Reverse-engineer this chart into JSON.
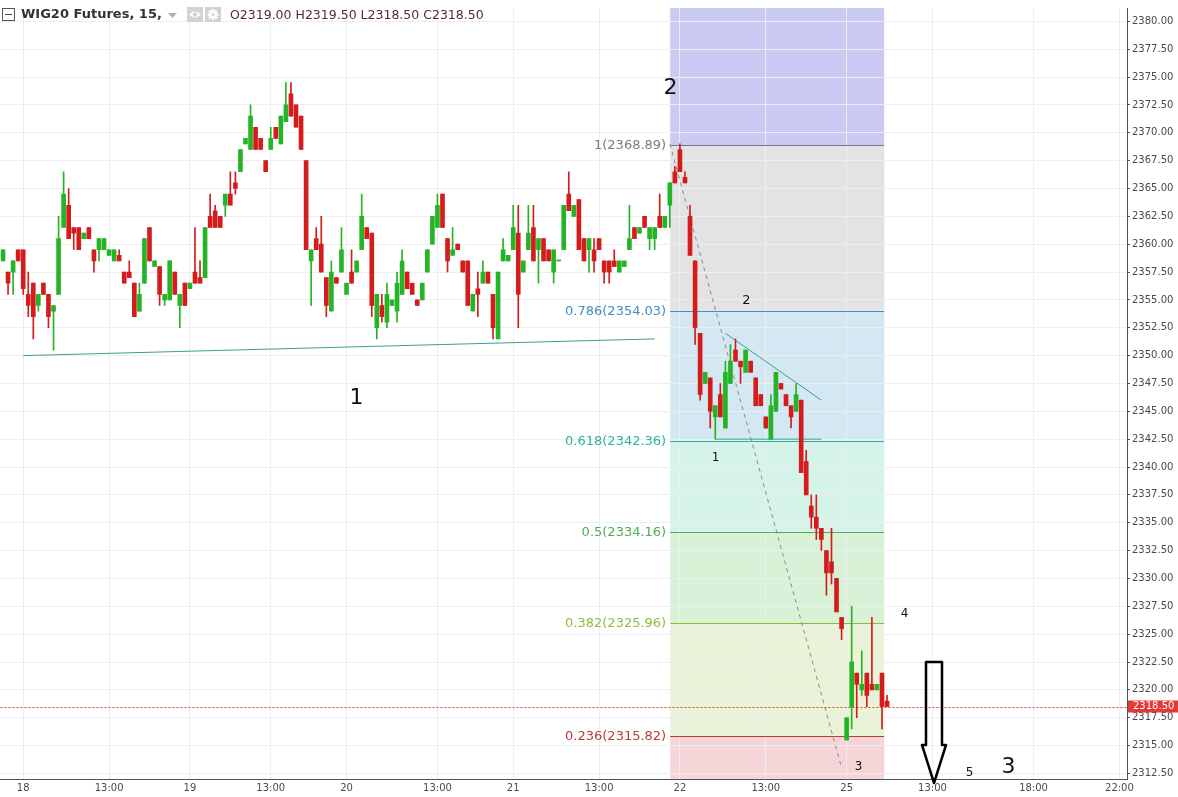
{
  "chart_data": {
    "type": "candlestick",
    "title": "WIG20 Futures, 15,",
    "subtitle": "O2319.00 H2319.50 L2318.50 C2318.50",
    "categories": [
      null,
      null,
      null,
      null,
      "18",
      null,
      null,
      null,
      null,
      null,
      null,
      null,
      null,
      null,
      null,
      null,
      null,
      null,
      null,
      null,
      null,
      "13:00",
      null,
      null,
      null,
      null,
      null,
      null,
      null,
      null,
      null,
      null,
      null,
      null,
      null,
      null,
      null,
      "19",
      null,
      null,
      null,
      null,
      null,
      null,
      null,
      null,
      null,
      null,
      null,
      null,
      null,
      null,
      null,
      "13:00",
      null,
      null,
      null,
      null,
      null,
      null,
      null,
      null,
      null,
      null,
      null,
      null,
      null,
      null,
      "20",
      null,
      null,
      null,
      null,
      null,
      null,
      null,
      null,
      null,
      null,
      null,
      null,
      null,
      null,
      null,
      null,
      null,
      "13:00",
      null,
      null,
      null,
      null,
      null,
      null,
      null,
      null,
      null,
      null,
      null,
      null,
      null,
      null,
      "21",
      null,
      null,
      null,
      null,
      null,
      null,
      null,
      null,
      null,
      null,
      null,
      null,
      null,
      null,
      null,
      null,
      "13:00",
      null,
      null,
      null,
      null,
      null,
      null,
      null,
      null,
      null,
      null,
      null,
      null,
      null,
      null,
      null,
      "22",
      null,
      null,
      null,
      null,
      null,
      null,
      null,
      null,
      null,
      null,
      null,
      null,
      null,
      null,
      null,
      null,
      "13:00",
      null,
      null,
      null,
      null,
      null,
      null,
      null,
      null,
      null,
      null,
      null,
      null,
      null,
      null,
      null,
      "25",
      null,
      null,
      null,
      null,
      null,
      null,
      null,
      null,
      null,
      null,
      null,
      null,
      null,
      null,
      null,
      null,
      "13:00",
      null,
      null,
      null,
      null,
      null,
      null,
      null,
      null,
      null,
      null,
      null,
      null,
      null,
      null,
      null,
      null,
      null,
      null,
      null,
      "18:00",
      null,
      null,
      null,
      null,
      null,
      null,
      null,
      null,
      null,
      null,
      null,
      null,
      null,
      null,
      null,
      null,
      "22:00",
      null
    ],
    "ohlc": [
      [
        2358.5,
        2359.5,
        2358.5,
        2359.5
      ],
      [
        2357.5,
        2357.5,
        2355.5,
        2356.5
      ],
      [
        2357.5,
        2358.5,
        2355.5,
        2358.5
      ],
      [
        2359.5,
        2359.5,
        2358.5,
        2358.5
      ],
      [
        2359.5,
        2359.5,
        2355.5,
        2356
      ],
      [
        2355.5,
        2357.5,
        2353.5,
        2354.5
      ],
      [
        2356.5,
        2356.5,
        2351.5,
        2353.5
      ],
      [
        2354.5,
        2355.5,
        2354,
        2355.5
      ],
      [
        2356.5,
        2356.5,
        2355.5,
        2355.5
      ],
      [
        2355.5,
        2355.5,
        2352.5,
        2353.5
      ],
      [
        2354,
        2354.5,
        2350.5,
        2354.5
      ],
      [
        2355.5,
        2362.5,
        2355.5,
        2360.5
      ],
      [
        2361.5,
        2366.5,
        2361.5,
        2364.5
      ],
      [
        2363.5,
        2365,
        2360.5,
        2360.5
      ],
      [
        2361.5,
        2361.5,
        2359.5,
        2361
      ],
      [
        2361.5,
        2361.5,
        2359.5,
        2359.5
      ],
      [
        2360.5,
        2361,
        2360.5,
        2361
      ],
      [
        2361.5,
        2361.5,
        2360.5,
        2360.5
      ],
      [
        2359.5,
        2359.5,
        2357.5,
        2358.5
      ],
      [
        2359.5,
        2360.5,
        2358.5,
        2360.5
      ],
      [
        2359.5,
        2360.5,
        2359.5,
        2360.5
      ],
      [
        2359,
        2359.5,
        2359,
        2359.5
      ],
      [
        2358.5,
        2359.5,
        2358.5,
        2359.5
      ],
      [
        2359,
        2359.5,
        2358.5,
        2358.5
      ],
      [
        2357.5,
        2357.5,
        2356.5,
        2356.5
      ],
      [
        2357.5,
        2358.5,
        2357,
        2357
      ],
      [
        2356.5,
        2356.5,
        2353.5,
        2353.5
      ],
      [
        2354,
        2356.5,
        2354,
        2355.5
      ],
      [
        2356.5,
        2360.5,
        2356.5,
        2360.5
      ],
      [
        2361.5,
        2361.5,
        2358.5,
        2358.5
      ],
      [
        2358,
        2358.5,
        2358,
        2358.5
      ],
      [
        2358,
        2358,
        2354.5,
        2355.5
      ],
      [
        2355,
        2355.5,
        2354.5,
        2355.5
      ],
      [
        2355,
        2358.5,
        2355,
        2358.5
      ],
      [
        2357.5,
        2357.5,
        2355.5,
        2355.5
      ],
      [
        2354.5,
        2355.5,
        2352.5,
        2355.5
      ],
      [
        2356.5,
        2356.5,
        2354.5,
        2354.5
      ],
      [
        2356,
        2356.5,
        2356,
        2356.5
      ],
      [
        2357.5,
        2361.5,
        2356.5,
        2356.5
      ],
      [
        2357,
        2358.5,
        2356.5,
        2356.5
      ],
      [
        2357,
        2361.5,
        2357,
        2361.5
      ],
      [
        2362.5,
        2364.5,
        2361.5,
        2361.5
      ],
      [
        2363,
        2363.5,
        2361.5,
        2361.5
      ],
      [
        2362.5,
        2362.5,
        2361.5,
        2361.5
      ],
      [
        2363.5,
        2364.5,
        2362.5,
        2364.5
      ],
      [
        2364.5,
        2366.5,
        2363.5,
        2363.5
      ],
      [
        2365.5,
        2366.5,
        2364.5,
        2365
      ],
      [
        2366.5,
        2368.5,
        2366.5,
        2368.5
      ],
      [
        2369,
        2369.5,
        2369,
        2369.5
      ],
      [
        2368.5,
        2372.5,
        2368.5,
        2371.5
      ],
      [
        2370.5,
        2370.5,
        2368.5,
        2368.5
      ],
      [
        2369.5,
        2369.5,
        2368.5,
        2368.5
      ],
      [
        2367.5,
        2367.5,
        2366.5,
        2366.5
      ],
      [
        2368.5,
        2370.5,
        2368.5,
        2369.5
      ],
      [
        2370.5,
        2370.5,
        2369.5,
        2369.5
      ],
      [
        2369,
        2371.5,
        2369,
        2371.5
      ],
      [
        2371,
        2374.5,
        2371,
        2372.5
      ],
      [
        2373.5,
        2374.5,
        2371.5,
        2371.5
      ],
      [
        2372.5,
        2372.5,
        2370.5,
        2370.5
      ],
      [
        2371.5,
        2371.5,
        2368.5,
        2368.5
      ],
      [
        2367.5,
        2367.5,
        2359.5,
        2359.5
      ],
      [
        2358.5,
        2359.5,
        2354.5,
        2359.5
      ],
      [
        2360.5,
        2361.5,
        2359.5,
        2359.5
      ],
      [
        2360,
        2362.5,
        2357.5,
        2357.5
      ],
      [
        2357,
        2357,
        2353.5,
        2354.5
      ],
      [
        2354,
        2358.5,
        2354,
        2357.5
      ],
      [
        2357,
        2357,
        2356.5,
        2356.5
      ],
      [
        2357.5,
        2361.5,
        2357.5,
        2359.5
      ],
      [
        2355.5,
        2356.5,
        2355.5,
        2356.5
      ],
      [
        2357.5,
        2359.5,
        2356.5,
        2356.5
      ],
      [
        2357.5,
        2358.5,
        2357.5,
        2358.5
      ],
      [
        2359.5,
        2364.5,
        2359.5,
        2362.5
      ],
      [
        2361.5,
        2361.5,
        2360.5,
        2360.5
      ],
      [
        2361,
        2361,
        2353.5,
        2354.5
      ],
      [
        2352.5,
        2355.5,
        2351.5,
        2355.5
      ],
      [
        2354.5,
        2355.5,
        2353,
        2353.5
      ],
      [
        2353,
        2356.5,
        2352.5,
        2355.5
      ],
      [
        2354.5,
        2355,
        2354.5,
        2355
      ],
      [
        2354,
        2357.5,
        2353,
        2356.5
      ],
      [
        2355.5,
        2359.5,
        2355.5,
        2358.5
      ],
      [
        2357.5,
        2357.5,
        2356,
        2356
      ],
      [
        2356.5,
        2356.5,
        2355.5,
        2355.5
      ],
      [
        2355,
        2355,
        2354.5,
        2354.5
      ],
      [
        2355,
        2356.5,
        2355,
        2356.5
      ],
      [
        2357.5,
        2359.5,
        2357.5,
        2359.5
      ],
      [
        2360,
        2362.5,
        2360,
        2362.5
      ],
      [
        2361.5,
        2364.5,
        2361.5,
        2363.5
      ],
      [
        2364.5,
        2364.5,
        2361.5,
        2361.5
      ],
      [
        2360.5,
        2360.5,
        2357.5,
        2358.5
      ],
      [
        2359,
        2361.5,
        2359,
        2359.5
      ],
      [
        2360,
        2360,
        2359.5,
        2359.5
      ],
      [
        2358.5,
        2358.5,
        2357.5,
        2357.5
      ],
      [
        2358.5,
        2358.5,
        2354.5,
        2354.5
      ],
      [
        2354,
        2355.5,
        2354,
        2355.5
      ],
      [
        2356,
        2357.5,
        2353.5,
        2355.5
      ],
      [
        2356.5,
        2358.5,
        2356.5,
        2357.5
      ],
      [
        2357.5,
        2357.5,
        2356.5,
        2356.5
      ],
      [
        2355.5,
        2355.5,
        2351.5,
        2352.5
      ],
      [
        2351.5,
        2357.5,
        2351.5,
        2357.5
      ],
      [
        2358.5,
        2360.5,
        2358.5,
        2359.5
      ],
      [
        2358.5,
        2359,
        2358.5,
        2359
      ],
      [
        2359.5,
        2363.5,
        2359.5,
        2361.5
      ],
      [
        2361,
        2363.5,
        2352.5,
        2355.5
      ],
      [
        2357.5,
        2358.5,
        2357.5,
        2358.5
      ],
      [
        2359.5,
        2363.5,
        2359.5,
        2361
      ],
      [
        2361.5,
        2363.5,
        2358.5,
        2358.5
      ],
      [
        2359.5,
        2360.5,
        2356.5,
        2360.5
      ],
      [
        2360.5,
        2360.5,
        2358.5,
        2358.5
      ],
      [
        2359.5,
        2359.5,
        2358.5,
        2358.5
      ],
      [
        2357.5,
        2359.5,
        2356.5,
        2359.5
      ],
      [
        2358.5,
        2358.5,
        2358.5,
        2358.5
      ],
      [
        2359.5,
        2363.5,
        2359.5,
        2363.5
      ],
      [
        2364.5,
        2366.5,
        2363,
        2363
      ],
      [
        2362.5,
        2363.5,
        2362.5,
        2363.5
      ],
      [
        2364,
        2364,
        2359.5,
        2359.5
      ],
      [
        2360.5,
        2360.5,
        2358.5,
        2358.5
      ],
      [
        2359.5,
        2360.5,
        2357.5,
        2360.5
      ],
      [
        2359.5,
        2360.5,
        2357.5,
        2358.5
      ],
      [
        2360.5,
        2360.5,
        2359.5,
        2359.5
      ],
      [
        2358.5,
        2358.5,
        2356.5,
        2357.5
      ],
      [
        2358.5,
        2358.5,
        2356.5,
        2357.5
      ],
      [
        2358.5,
        2359.5,
        2358,
        2358
      ],
      [
        2357.5,
        2358.5,
        2357.5,
        2358.5
      ],
      [
        2358,
        2358.5,
        2358,
        2358.5
      ],
      [
        2359.5,
        2363.5,
        2359.5,
        2360.5
      ],
      [
        2361.5,
        2361.5,
        2360.5,
        2360.5
      ],
      [
        2361,
        2361.5,
        2361,
        2361.5
      ],
      [
        2362.5,
        2362.5,
        2361.5,
        2361.5
      ],
      [
        2360.5,
        2361.5,
        2359.5,
        2361.5
      ],
      [
        2360.5,
        2361.5,
        2359.5,
        2361.5
      ],
      [
        2362.5,
        2364.5,
        2361.5,
        2361.5
      ],
      [
        2361.5,
        2362.5,
        2361.5,
        2362.5
      ],
      [
        2363.5,
        2365.5,
        2361.5,
        2365.5
      ],
      [
        2366.5,
        2367,
        2365.5,
        2365.5
      ],
      [
        2368.5,
        2369,
        2366.5,
        2366.5
      ],
      [
        2366,
        2366.5,
        2365.5,
        2365.5
      ],
      [
        2362.5,
        2363.5,
        2359,
        2359
      ],
      [
        2358.5,
        2358.5,
        2351,
        2352.5
      ],
      [
        2352,
        2352,
        2346,
        2346.5
      ],
      [
        2347.5,
        2348.5,
        2347.5,
        2348.5
      ],
      [
        2348,
        2348,
        2343.5,
        2345
      ],
      [
        2344.5,
        2345.5,
        2342.5,
        2345.5
      ],
      [
        2346.5,
        2347.5,
        2344.5,
        2344.5
      ],
      [
        2343.5,
        2349.5,
        2343.5,
        2348.5
      ],
      [
        2347.5,
        2351,
        2347.5,
        2349.5
      ],
      [
        2350.5,
        2351.5,
        2349.5,
        2349.5
      ],
      [
        2349.5,
        2349.5,
        2347.5,
        2349
      ],
      [
        2348.5,
        2350.5,
        2348.5,
        2350.5
      ],
      [
        2349.5,
        2349.5,
        2348.5,
        2348.5
      ],
      [
        2348,
        2348,
        2345.5,
        2345.5
      ],
      [
        2346.5,
        2346.5,
        2345.5,
        2345.5
      ],
      [
        2344.5,
        2344.5,
        2343.5,
        2343.5
      ],
      [
        2342.5,
        2346.5,
        2342.5,
        2345.5
      ],
      [
        2345,
        2348.5,
        2345,
        2348.5
      ],
      [
        2347.5,
        2347.5,
        2347,
        2347
      ],
      [
        2346.5,
        2346.5,
        2345.5,
        2345.5
      ],
      [
        2345.5,
        2345.5,
        2343.5,
        2344.5
      ],
      [
        2345,
        2347.5,
        2345,
        2346.5
      ],
      [
        2346,
        2346,
        2339.5,
        2339.5
      ],
      [
        2340.5,
        2341.5,
        2337.5,
        2337.5
      ],
      [
        2336.5,
        2337.5,
        2334.5,
        2335.5
      ],
      [
        2335.5,
        2337.5,
        2333.5,
        2334.5
      ],
      [
        2334.5,
        2334.5,
        2332.5,
        2333.5
      ],
      [
        2332.5,
        2332.5,
        2328.5,
        2330.5
      ],
      [
        2331.5,
        2334.5,
        2329.5,
        2330.5
      ],
      [
        2330,
        2330,
        2327,
        2327
      ],
      [
        2326.5,
        2326.5,
        2324.5,
        2325.5
      ],
      [
        2315.5,
        2317.5,
        2315.5,
        2317.5
      ],
      [
        2318.5,
        2327.5,
        2316.5,
        2322.5
      ],
      [
        2321.5,
        2321.5,
        2317.5,
        2320.5
      ],
      [
        2320,
        2323.5,
        2319.5,
        2320.5
      ],
      [
        2321.5,
        2321.5,
        2318.5,
        2319.5
      ],
      [
        2320.5,
        2326.5,
        2320,
        2320
      ],
      [
        2320,
        2320.5,
        2320,
        2320.5
      ],
      [
        2321.5,
        2321.5,
        2316.5,
        2318.5
      ],
      [
        2319,
        2319.5,
        2318.5,
        2318.5
      ],
      null,
      null,
      null,
      null,
      null,
      null,
      null,
      null,
      null,
      null,
      null,
      null,
      null,
      null,
      null,
      null,
      null,
      null,
      null,
      null,
      null,
      null,
      null,
      null,
      null,
      null,
      null,
      null,
      null,
      null,
      null,
      null,
      null,
      null,
      null,
      null,
      null,
      null,
      null,
      null,
      null,
      null,
      null,
      null,
      null,
      null,
      null
    ],
    "colors": [
      "#25b425",
      "#d51c1c",
      "#25b425",
      "#d51c1c",
      "#d51c1c",
      "#d51c1c",
      "#d51c1c",
      "#25b425",
      "#d51c1c",
      "#d51c1c",
      "#25b425",
      "#25b425",
      "#25b425",
      "#d51c1c",
      "#d51c1c",
      "#d51c1c",
      "#25b425",
      "#d51c1c",
      "#d51c1c",
      "#25b425",
      "#25b425",
      "#25b425",
      "#25b425",
      "#d51c1c",
      "#d51c1c",
      "#d51c1c",
      "#d51c1c",
      "#25b425",
      "#25b425",
      "#d51c1c",
      "#25b425",
      "#d51c1c",
      "#25b425",
      "#25b425",
      "#d51c1c",
      "#25b425",
      "#d51c1c",
      "#25b425",
      "#d51c1c",
      "#d51c1c",
      "#25b425",
      "#d51c1c",
      "#d51c1c",
      "#d51c1c",
      "#25b425",
      "#d51c1c",
      "#d51c1c",
      "#25b425",
      "#25b425",
      "#25b425",
      "#d51c1c",
      "#d51c1c",
      "#d51c1c",
      "#25b425",
      "#d51c1c",
      "#25b425",
      "#25b425",
      "#d51c1c",
      "#d51c1c",
      "#d51c1c",
      "#d51c1c",
      "#25b425",
      "#d51c1c",
      "#d51c1c",
      "#d51c1c",
      "#25b425",
      "#d51c1c",
      "#25b425",
      "#25b425",
      "#d51c1c",
      "#25b425",
      "#25b425",
      "#d51c1c",
      "#d51c1c",
      "#25b425",
      "#d51c1c",
      "#25b425",
      "#25b425",
      "#25b425",
      "#25b425",
      "#d51c1c",
      "#d51c1c",
      "#d51c1c",
      "#25b425",
      "#25b425",
      "#25b425",
      "#25b425",
      "#d51c1c",
      "#d51c1c",
      "#25b425",
      "#d51c1c",
      "#d51c1c",
      "#d51c1c",
      "#25b425",
      "#d51c1c",
      "#25b425",
      "#d51c1c",
      "#d51c1c",
      "#25b425",
      "#25b425",
      "#25b425",
      "#25b425",
      "#d51c1c",
      "#25b425",
      "#25b425",
      "#d51c1c",
      "#25b425",
      "#d51c1c",
      "#d51c1c",
      "#25b425",
      "#25b425",
      "#25b425",
      "#d51c1c",
      "#25b425",
      "#d51c1c",
      "#d51c1c",
      "#25b425",
      "#d51c1c",
      "#d51c1c",
      "#d51c1c",
      "#d51c1c",
      "#d51c1c",
      "#25b425",
      "#25b425",
      "#25b425",
      "#d51c1c",
      "#25b425",
      "#d51c1c",
      "#25b425",
      "#25b425",
      "#d51c1c",
      "#25b425",
      "#25b425",
      "#d51c1c",
      "#d51c1c",
      "#d51c1c",
      "#d51c1c",
      "#d51c1c",
      "#d51c1c",
      "#25b425",
      "#d51c1c",
      "#25b425",
      "#d51c1c",
      "#25b425",
      "#25b425",
      "#d51c1c",
      "#d51c1c",
      "#25b425",
      "#d51c1c",
      "#d51c1c",
      "#d51c1c",
      "#d51c1c",
      "#25b425",
      "#25b425",
      "#d51c1c",
      "#d51c1c",
      "#d51c1c",
      "#25b425",
      "#d51c1c",
      "#d51c1c",
      "#d51c1c",
      "#d51c1c",
      "#d51c1c",
      "#d51c1c",
      "#d51c1c",
      "#d51c1c",
      "#d51c1c",
      "#25b425",
      "#25b425",
      "#d51c1c",
      "#25b425",
      "#d51c1c",
      "#d51c1c",
      "#25b425",
      "#d51c1c",
      "#d51c1c",
      null,
      null,
      null,
      null,
      null,
      null,
      null,
      null,
      null,
      null,
      null,
      null,
      null,
      null,
      null,
      null,
      null,
      null,
      null,
      null,
      null,
      null,
      null,
      null,
      null,
      null,
      null,
      null,
      null,
      null,
      null,
      null,
      null,
      null,
      null,
      null,
      null,
      null,
      null,
      null,
      null,
      null,
      null,
      null,
      null,
      null,
      null
    ],
    "series": [
      {
        "type": "line",
        "color": "#3a9f96",
        "values": [
          null,
          null,
          null,
          null,
          2350,
          null,
          null,
          null,
          null,
          null,
          null,
          null,
          null,
          null,
          null,
          null,
          null,
          null,
          null,
          null,
          null,
          null,
          null,
          null,
          null,
          null,
          null,
          null,
          null,
          null,
          null,
          null,
          null,
          null,
          null,
          null,
          null,
          null,
          null,
          null,
          null,
          null,
          null,
          null,
          null,
          null,
          null,
          null,
          null,
          null,
          null,
          null,
          null,
          null,
          null,
          null,
          null,
          null,
          null,
          null,
          null,
          null,
          null,
          null,
          null,
          null,
          null,
          null,
          null,
          null,
          null,
          null,
          null,
          null,
          null,
          null,
          null,
          null,
          null,
          null,
          null,
          null,
          null,
          null,
          null,
          null,
          null,
          null,
          null,
          null,
          null,
          null,
          null,
          null,
          null,
          null,
          null,
          null,
          null,
          null,
          null,
          null,
          null,
          null,
          null,
          null,
          null,
          null,
          null,
          null,
          null,
          null,
          null,
          null,
          null,
          null,
          null,
          null,
          null,
          null,
          null,
          null,
          null,
          null,
          null,
          null,
          null,
          null,
          null,
          2351.5,
          null,
          null,
          null,
          null,
          null,
          null,
          null,
          null,
          null,
          null,
          null,
          null,
          null,
          null,
          null,
          null,
          null,
          null,
          null,
          null,
          null,
          null,
          null,
          null,
          null,
          null,
          null,
          null,
          null,
          null,
          null,
          null,
          null,
          null,
          null,
          null,
          null,
          null,
          null,
          null,
          null,
          null,
          null,
          null,
          null,
          null,
          null,
          null,
          null,
          null,
          null,
          null,
          null,
          null,
          null,
          null,
          null,
          null,
          null,
          null,
          null,
          null,
          null,
          null,
          null,
          null,
          null,
          null,
          null,
          null,
          null,
          null,
          null,
          null,
          null,
          null,
          null,
          null,
          null,
          null,
          null,
          null,
          null,
          null,
          null,
          null,
          null,
          null,
          null,
          null,
          null,
          null,
          null
        ]
      },
      {
        "type": "line",
        "color": "#3a9f96",
        "values": [
          null,
          null,
          null,
          null,
          null,
          null,
          null,
          null,
          null,
          null,
          null,
          null,
          null,
          null,
          null,
          null,
          null,
          null,
          null,
          null,
          null,
          null,
          null,
          null,
          null,
          null,
          null,
          null,
          null,
          null,
          null,
          null,
          null,
          null,
          null,
          null,
          null,
          null,
          null,
          null,
          null,
          null,
          null,
          null,
          null,
          null,
          null,
          null,
          null,
          null,
          null,
          null,
          null,
          null,
          null,
          null,
          null,
          null,
          null,
          null,
          null,
          null,
          null,
          null,
          null,
          null,
          null,
          null,
          null,
          null,
          null,
          null,
          null,
          null,
          null,
          null,
          null,
          null,
          null,
          null,
          null,
          null,
          null,
          null,
          null,
          null,
          null,
          null,
          null,
          null,
          null,
          null,
          null,
          null,
          null,
          null,
          null,
          null,
          null,
          null,
          null,
          null,
          null,
          null,
          null,
          null,
          null,
          null,
          null,
          null,
          null,
          null,
          null,
          null,
          null,
          null,
          null,
          null,
          null,
          null,
          null,
          null,
          null,
          null,
          null,
          null,
          null,
          null,
          null,
          null,
          null,
          null,
          null,
          null,
          null,
          null,
          null,
          null,
          null,
          null,
          null,
          null,
          null,
          2352,
          null,
          null,
          null,
          null,
          null,
          null,
          null,
          null,
          null,
          null,
          null,
          null,
          null,
          null,
          null,
          null,
          null,
          null,
          2346,
          null,
          null,
          null,
          null,
          null,
          null,
          null,
          null,
          null,
          null,
          null,
          null,
          null,
          null,
          null,
          null,
          null,
          null,
          null,
          null,
          null,
          null,
          null,
          null,
          null,
          null,
          null,
          null,
          null,
          null,
          null,
          null,
          null,
          null,
          null,
          null,
          null,
          null,
          null,
          null,
          null,
          null,
          null,
          null,
          null,
          null,
          null,
          null,
          null,
          null,
          null,
          null,
          null,
          null,
          null,
          null,
          null,
          null,
          null,
          null
        ]
      },
      {
        "type": "line",
        "color": "#3a9f96",
        "values": [
          null,
          null,
          null,
          null,
          null,
          null,
          null,
          null,
          null,
          null,
          null,
          null,
          null,
          null,
          null,
          null,
          null,
          null,
          null,
          null,
          null,
          null,
          null,
          null,
          null,
          null,
          null,
          null,
          null,
          null,
          null,
          null,
          null,
          null,
          null,
          null,
          null,
          null,
          null,
          null,
          null,
          null,
          null,
          null,
          null,
          null,
          null,
          null,
          null,
          null,
          null,
          null,
          null,
          null,
          null,
          null,
          null,
          null,
          null,
          null,
          null,
          null,
          null,
          null,
          null,
          null,
          null,
          null,
          null,
          null,
          null,
          null,
          null,
          null,
          null,
          null,
          null,
          null,
          null,
          null,
          null,
          null,
          null,
          null,
          null,
          null,
          null,
          null,
          null,
          null,
          null,
          null,
          null,
          null,
          null,
          null,
          null,
          null,
          null,
          null,
          null,
          null,
          null,
          null,
          null,
          null,
          null,
          null,
          null,
          null,
          null,
          null,
          null,
          null,
          null,
          null,
          null,
          null,
          null,
          null,
          null,
          null,
          null,
          null,
          null,
          null,
          null,
          null,
          null,
          null,
          null,
          null,
          null,
          null,
          null,
          null,
          null,
          null,
          null,
          null,
          null,
          2342.5,
          null,
          null,
          null,
          null,
          null,
          null,
          null,
          null,
          null,
          null,
          null,
          null,
          null,
          null,
          null,
          null,
          null,
          null,
          null,
          null,
          2342.5,
          null,
          null,
          null,
          null,
          null,
          null,
          null,
          null,
          null,
          null,
          null,
          null,
          null,
          null,
          null,
          null,
          null,
          null,
          null,
          null,
          null,
          null,
          null,
          null,
          null,
          null,
          null,
          null,
          null,
          null,
          null,
          null,
          null,
          null,
          null,
          null,
          null,
          null,
          null,
          null,
          null,
          null,
          null,
          null,
          null,
          null,
          null,
          null,
          null,
          null,
          null,
          null,
          null,
          null,
          null,
          null,
          null,
          null,
          null,
          null
        ]
      },
      {
        "type": "line",
        "color": "#8a8a8a",
        "line_style": "dashed",
        "values": [
          null,
          null,
          null,
          null,
          null,
          null,
          null,
          null,
          null,
          null,
          null,
          null,
          null,
          null,
          null,
          null,
          null,
          null,
          null,
          null,
          null,
          null,
          null,
          null,
          null,
          null,
          null,
          null,
          null,
          null,
          null,
          null,
          null,
          null,
          null,
          null,
          null,
          null,
          null,
          null,
          null,
          null,
          null,
          null,
          null,
          null,
          null,
          null,
          null,
          null,
          null,
          null,
          null,
          null,
          null,
          null,
          null,
          null,
          null,
          null,
          null,
          null,
          null,
          null,
          null,
          null,
          null,
          null,
          null,
          null,
          null,
          null,
          null,
          null,
          null,
          null,
          null,
          null,
          null,
          null,
          null,
          null,
          null,
          null,
          null,
          null,
          null,
          null,
          null,
          null,
          null,
          null,
          null,
          null,
          null,
          null,
          null,
          null,
          null,
          null,
          null,
          null,
          null,
          null,
          null,
          null,
          null,
          null,
          null,
          null,
          null,
          null,
          null,
          null,
          null,
          null,
          null,
          null,
          null,
          null,
          null,
          null,
          null,
          null,
          null,
          null,
          null,
          null,
          null,
          null,
          null,
          null,
          2369,
          null,
          null,
          null,
          null,
          null,
          null,
          null,
          null,
          null,
          null,
          null,
          null,
          null,
          null,
          null,
          null,
          null,
          null,
          null,
          null,
          null,
          null,
          null,
          null,
          null,
          null,
          null,
          null,
          null,
          null,
          null,
          null,
          null,
          2313,
          null,
          null,
          null,
          null,
          null,
          null,
          null,
          null,
          null,
          null,
          null,
          null,
          null,
          null,
          null,
          null,
          null,
          null,
          null,
          null,
          null,
          null,
          null,
          null,
          null,
          null,
          null,
          null,
          null,
          null,
          null,
          null,
          null,
          null,
          null,
          null,
          null,
          null,
          null,
          null,
          null,
          null,
          null,
          null,
          null,
          null,
          null,
          null,
          null,
          null,
          null,
          null,
          null,
          null,
          null,
          null
        ]
      }
    ],
    "ylim": [
      2312,
      2381.2
    ],
    "yticks": [
      {
        "value": 2312.5,
        "label": "2312.50"
      },
      {
        "value": 2315,
        "label": "2315.00"
      },
      {
        "value": 2317.5,
        "label": "2317.50"
      },
      {
        "value": 2320,
        "label": "2320.00"
      },
      {
        "value": 2322.5,
        "label": "2322.50"
      },
      {
        "value": 2325,
        "label": "2325.00"
      },
      {
        "value": 2327.5,
        "label": "2327.50"
      },
      {
        "value": 2330,
        "label": "2330.00"
      },
      {
        "value": 2332.5,
        "label": "2332.50"
      },
      {
        "value": 2335,
        "label": "2335.00"
      },
      {
        "value": 2337.5,
        "label": "2337.50"
      },
      {
        "value": 2340,
        "label": "2340.00"
      },
      {
        "value": 2342.5,
        "label": "2342.50"
      },
      {
        "value": 2345,
        "label": "2345.00"
      },
      {
        "value": 2347.5,
        "label": "2347.50"
      },
      {
        "value": 2350,
        "label": "2350.00"
      },
      {
        "value": 2352.5,
        "label": "2352.50"
      },
      {
        "value": 2355,
        "label": "2355.00"
      },
      {
        "value": 2357.5,
        "label": "2357.50"
      },
      {
        "value": 2360,
        "label": "2360.00"
      },
      {
        "value": 2362.5,
        "label": "2362.50"
      },
      {
        "value": 2365,
        "label": "2365.00"
      },
      {
        "value": 2367.5,
        "label": "2367.50"
      },
      {
        "value": 2370,
        "label": "2370.00"
      },
      {
        "value": 2372.5,
        "label": "2372.50"
      },
      {
        "value": 2375,
        "label": "2375.00"
      },
      {
        "value": 2377.5,
        "label": "2377.50"
      },
      {
        "value": 2380,
        "label": "2380.00"
      }
    ],
    "bands": [
      {
        "axis": "y",
        "from": 2368.89,
        "to": 2381.2,
        "color": "#cacaf2"
      },
      {
        "axis": "y",
        "from": 2354.03,
        "to": 2368.89,
        "color": "#e3e3e3"
      },
      {
        "axis": "y",
        "from": 2342.36,
        "to": 2354.03,
        "color": "#d3e8f3"
      },
      {
        "axis": "y",
        "from": 2334.16,
        "to": 2342.36,
        "color": "#d6f3ea"
      },
      {
        "axis": "y",
        "from": 2325.96,
        "to": 2334.16,
        "color": "#d9f1d7"
      },
      {
        "axis": "y",
        "from": 2315.82,
        "to": 2325.96,
        "color": "#eaf3d7"
      },
      {
        "axis": "y",
        "from": 2312,
        "to": 2315.82,
        "color": "#f6d5d8"
      }
    ],
    "ref_lines": [
      {
        "axis": "y",
        "value": 2368.89,
        "label": "1(2368.89)",
        "color": "#787b86"
      },
      {
        "axis": "y",
        "value": 2354.03,
        "label": "0.786(2354.03)",
        "color": "#3d8fc0"
      },
      {
        "axis": "y",
        "value": 2342.36,
        "label": "0.618(2342.36)",
        "color": "#2eb39b"
      },
      {
        "axis": "y",
        "value": 2334.16,
        "label": "0.5(2334.16)",
        "color": "#4caf50"
      },
      {
        "axis": "y",
        "value": 2325.96,
        "label": "0.382(2325.96)",
        "color": "#8bbd3c"
      },
      {
        "axis": "y",
        "value": 2315.82,
        "label": "0.236(2315.82)",
        "color": "#bf3a3c"
      },
      {
        "axis": "y",
        "value": 2318.5,
        "label": "2318.50",
        "color": "#e53935",
        "line_style": "dotted"
      }
    ],
    "annotations": [
      "2",
      "1",
      "2",
      "1",
      "3",
      "4",
      "5",
      "3"
    ],
    "grid": true
  }
}
